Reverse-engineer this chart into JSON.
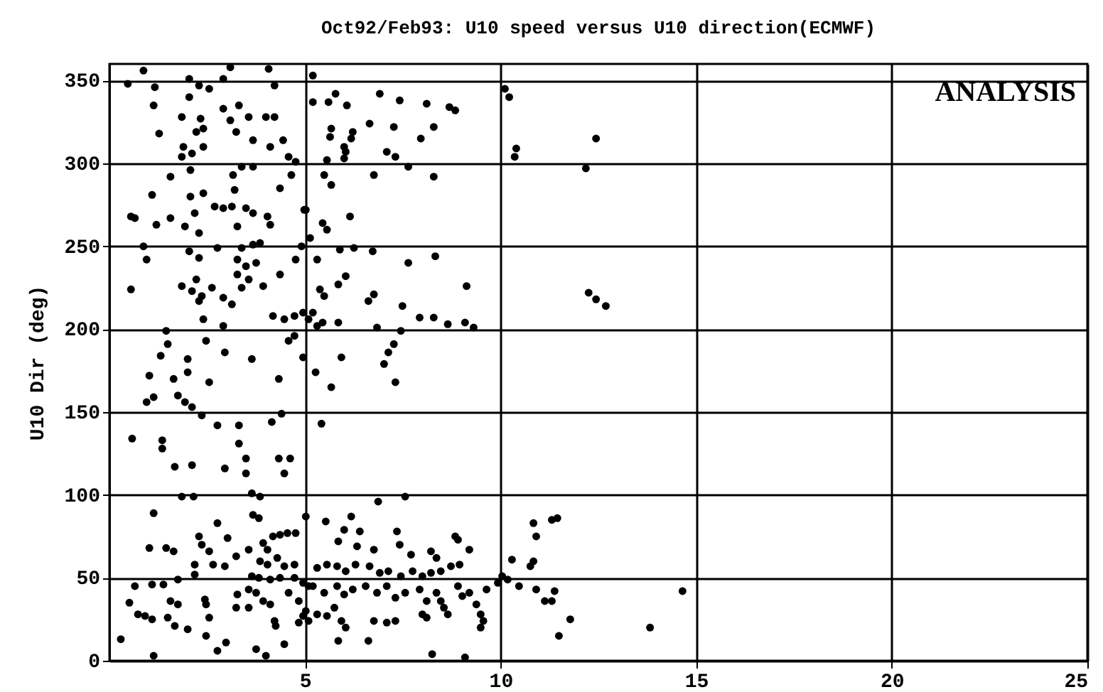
{
  "chart_data": {
    "type": "scatter",
    "title": "Oct92/Feb93: U10 speed versus U10 direction(ECMWF)",
    "ylabel": "U10 Dir (deg)",
    "annotations": [
      "ANALYSIS"
    ],
    "xlim": [
      0,
      25
    ],
    "xticks": [
      5,
      10,
      15,
      20,
      25
    ],
    "ylim": [
      0,
      360
    ],
    "yticks": [
      0,
      50,
      100,
      150,
      200,
      250,
      300,
      350
    ],
    "grid": true,
    "marker": "circle",
    "series": [
      {
        "color": "#000000",
        "x": [
          0.47,
          0.87,
          1.16,
          1.13,
          2.04,
          2.29,
          2.55,
          2.04,
          2.91,
          3.09,
          4.07,
          4.22,
          2.91,
          3.31,
          1.85,
          2.33,
          3.09,
          3.56,
          4.0,
          4.22,
          1.27,
          2.22,
          2.4,
          3.24,
          3.67,
          4.11,
          4.44,
          1.89,
          1.85,
          2.11,
          2.4,
          3.38,
          3.67,
          4.58,
          4.76,
          1.56,
          2.07,
          3.16,
          4.36,
          4.65,
          1.09,
          2.07,
          2.4,
          2.69,
          2.91,
          3.13,
          3.2,
          3.49,
          3.67,
          0.55,
          0.65,
          1.2,
          1.56,
          2.18,
          1.93,
          2.29,
          3.27,
          4.11,
          4.04,
          4.98,
          0.87,
          0.95,
          2.04,
          2.76,
          3.38,
          3.67,
          3.85,
          3.27,
          3.49,
          3.75,
          2.29,
          4.76,
          4.91,
          4.36,
          3.27,
          3.38,
          3.56,
          3.93,
          2.22,
          1.85,
          2.11,
          2.36,
          2.62,
          0.55,
          2.91,
          3.13,
          2.29,
          4.18,
          4.47,
          4.73,
          4.95,
          2.4,
          2.91,
          1.45,
          1.49,
          2.47,
          2.95,
          1.31,
          2.0,
          3.64,
          4.58,
          4.73,
          4.95,
          5.31,
          5.45,
          1.02,
          0.95,
          1.13,
          1.64,
          2.0,
          1.75,
          1.93,
          2.11,
          2.55,
          2.36,
          4.33,
          4.4,
          0.58,
          1.35,
          1.35,
          2.76,
          3.31,
          3.31,
          4.15,
          1.67,
          2.11,
          2.95,
          3.49,
          3.49,
          4.33,
          4.62,
          4.47,
          1.85,
          2.15,
          3.64,
          3.85,
          1.13,
          3.67,
          3.82,
          2.76,
          2.29,
          2.36,
          2.55,
          3.02,
          3.56,
          1.02,
          1.45,
          1.64,
          2.65,
          2.95,
          3.24,
          2.18,
          2.18,
          4.18,
          4.36,
          4.55,
          4.76,
          3.93,
          4.04,
          3.85,
          4.04,
          4.29,
          4.47,
          4.73,
          5.02,
          3.64,
          3.82,
          4.11,
          4.36,
          4.73,
          4.95,
          5.09,
          0.65,
          1.09,
          1.38,
          1.75,
          0.51,
          0.73,
          0.91,
          1.09,
          1.56,
          1.75,
          1.49,
          1.67,
          2.0,
          2.44,
          2.47,
          2.55,
          2.47,
          0.29,
          1.13,
          2.76,
          2.98,
          3.24,
          3.56,
          3.27,
          3.56,
          3.75,
          3.93,
          4.11,
          4.22,
          4.25,
          4.47,
          3.75,
          4.0,
          4.58,
          4.84,
          4.95,
          5.09,
          4.84,
          5.2,
          5.2,
          5.6,
          5.78,
          6.07,
          6.91,
          7.42,
          8.11,
          8.69,
          8.84,
          6.65,
          7.27,
          8.29,
          7.96,
          5.67,
          5.64,
          6.22,
          6.18,
          6.0,
          6.04,
          6.0,
          7.09,
          7.31,
          5.56,
          7.64,
          10.11,
          10.22,
          10.4,
          10.36,
          5.49,
          5.67,
          6.76,
          8.29,
          5.02,
          6.15,
          5.45,
          5.56,
          5.13,
          5.89,
          6.25,
          6.73,
          5.31,
          7.64,
          8.33,
          6.04,
          5.85,
          5.38,
          5.49,
          6.76,
          6.62,
          9.13,
          7.49,
          5.2,
          5.09,
          5.85,
          6.84,
          7.93,
          8.29,
          8.65,
          9.09,
          9.31,
          7.45,
          7.27,
          7.13,
          7.02,
          5.93,
          5.27,
          5.67,
          7.31,
          5.42,
          7.56,
          6.87,
          5.53,
          6.18,
          6.4,
          6.0,
          5.85,
          7.35,
          7.42,
          6.33,
          6.76,
          8.84,
          8.91,
          9.2,
          7.71,
          8.22,
          8.36,
          10.84,
          10.91,
          10.29,
          10.84,
          10.76,
          11.31,
          5.31,
          5.56,
          5.82,
          6.04,
          6.29,
          6.65,
          6.91,
          7.13,
          7.45,
          7.75,
          8.0,
          8.22,
          8.47,
          8.73,
          8.95,
          5.2,
          5.49,
          5.82,
          6.0,
          6.22,
          6.55,
          6.84,
          7.09,
          7.31,
          7.56,
          7.93,
          8.11,
          8.36,
          8.47,
          8.91,
          9.02,
          9.2,
          9.38,
          9.64,
          9.93,
          10.18,
          5.02,
          5.31,
          5.56,
          5.75,
          5.93,
          6.76,
          7.09,
          7.31,
          8.0,
          8.11,
          8.55,
          8.65,
          9.49,
          9.56,
          9.49,
          6.04,
          5.85,
          6.62,
          8.25,
          9.09,
          11.13,
          10.91,
          10.04,
          10.47,
          12.44,
          12.18,
          12.25,
          12.44,
          12.69,
          11.45,
          11.38,
          11.31,
          11.78,
          11.49,
          14.65,
          13.82
        ],
        "values": [
          348,
          356,
          346,
          335,
          351,
          347,
          345,
          340,
          351,
          358,
          357,
          347,
          333,
          335,
          328,
          327,
          326,
          328,
          328,
          328,
          318,
          319,
          321,
          319,
          314,
          310,
          314,
          310,
          304,
          306,
          310,
          298,
          298,
          304,
          301,
          292,
          296,
          293,
          285,
          293,
          281,
          280,
          282,
          274,
          273,
          274,
          284,
          273,
          270,
          268,
          267,
          263,
          267,
          270,
          262,
          258,
          262,
          263,
          268,
          272,
          250,
          242,
          247,
          249,
          249,
          251,
          252,
          242,
          238,
          240,
          243,
          242,
          250,
          233,
          233,
          225,
          230,
          226,
          230,
          226,
          223,
          220,
          225,
          224,
          219,
          215,
          217,
          208,
          206,
          208,
          210,
          206,
          202,
          199,
          191,
          193,
          186,
          184,
          182,
          182,
          193,
          196,
          183,
          202,
          204,
          172,
          156,
          159,
          170,
          174,
          160,
          156,
          153,
          168,
          148,
          170,
          149,
          134,
          133,
          128,
          142,
          142,
          131,
          144,
          117,
          118,
          116,
          122,
          113,
          122,
          122,
          113,
          99,
          99,
          101,
          99,
          89,
          88,
          86,
          83,
          75,
          70,
          66,
          74,
          67,
          68,
          68,
          66,
          58,
          57,
          63,
          58,
          52,
          75,
          76,
          77,
          77,
          71,
          67,
          60,
          58,
          62,
          57,
          58,
          87,
          51,
          50,
          49,
          50,
          50,
          47,
          45,
          45,
          46,
          46,
          49,
          35,
          28,
          27,
          25,
          36,
          34,
          26,
          21,
          19,
          37,
          34,
          26,
          15,
          13,
          3,
          6,
          11,
          32,
          32,
          40,
          43,
          41,
          36,
          34,
          24,
          21,
          10,
          7,
          3,
          41,
          36,
          27,
          24,
          23,
          353,
          337,
          337,
          342,
          335,
          342,
          338,
          336,
          334,
          332,
          324,
          322,
          322,
          315,
          321,
          316,
          319,
          315,
          310,
          307,
          303,
          307,
          304,
          302,
          298,
          345,
          340,
          309,
          304,
          293,
          287,
          293,
          292,
          272,
          268,
          264,
          260,
          255,
          248,
          249,
          247,
          242,
          240,
          244,
          232,
          227,
          224,
          220,
          221,
          217,
          226,
          214,
          210,
          206,
          204,
          201,
          207,
          207,
          203,
          204,
          201,
          199,
          191,
          186,
          179,
          183,
          174,
          165,
          168,
          143,
          99,
          96,
          84,
          87,
          78,
          79,
          72,
          78,
          70,
          69,
          67,
          75,
          73,
          67,
          64,
          66,
          62,
          83,
          75,
          61,
          60,
          57,
          85,
          56,
          58,
          57,
          54,
          58,
          57,
          53,
          54,
          51,
          54,
          51,
          53,
          54,
          57,
          58,
          45,
          41,
          45,
          40,
          43,
          45,
          41,
          45,
          38,
          41,
          43,
          36,
          41,
          36,
          45,
          39,
          41,
          34,
          43,
          47,
          49,
          30,
          28,
          27,
          32,
          24,
          24,
          23,
          24,
          28,
          26,
          32,
          28,
          28,
          24,
          20,
          20,
          12,
          12,
          4,
          2,
          36,
          43,
          51,
          45,
          315,
          297,
          222,
          218,
          214,
          86,
          42,
          36,
          25,
          15,
          42,
          20
        ]
      }
    ]
  }
}
